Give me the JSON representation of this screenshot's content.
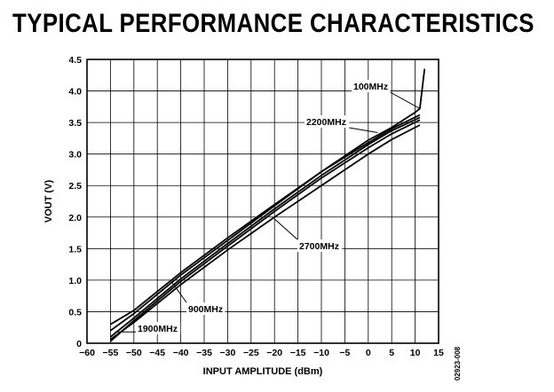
{
  "page": {
    "heading": "TYPICAL PERFORMANCE CHARACTERISTICS",
    "figure_id": "02923-008"
  },
  "chart_data": {
    "type": "line",
    "title": "",
    "xlabel": "INPUT AMPLITUDE (dBm)",
    "ylabel": "VOUT (V)",
    "xlim": [
      -60,
      15
    ],
    "ylim": [
      0,
      4.5
    ],
    "x_ticks": [
      -60,
      -55,
      -50,
      -45,
      -40,
      -35,
      -30,
      -25,
      -20,
      -15,
      -10,
      -5,
      0,
      5,
      10,
      15
    ],
    "x_tick_labels": [
      "−60",
      "−55",
      "−50",
      "−45",
      "−40",
      "−35",
      "−30",
      "−25",
      "−20",
      "−15",
      "−10",
      "−5",
      "0",
      "5",
      "10",
      "15"
    ],
    "y_ticks": [
      0,
      0.5,
      1.0,
      1.5,
      2.0,
      2.5,
      3.0,
      3.5,
      4.0,
      4.5
    ],
    "y_tick_labels": [
      "0",
      "0.5",
      "1.0",
      "1.5",
      "2.0",
      "2.5",
      "3.0",
      "3.5",
      "4.0",
      "4.5"
    ],
    "grid": true,
    "series": [
      {
        "name": "100MHz",
        "points": [
          [
            -55,
            0.2
          ],
          [
            -50,
            0.47
          ],
          [
            -40,
            1.08
          ],
          [
            -30,
            1.63
          ],
          [
            -20,
            2.18
          ],
          [
            -10,
            2.72
          ],
          [
            0,
            3.22
          ],
          [
            5,
            3.42
          ],
          [
            10,
            3.66
          ],
          [
            11,
            3.72
          ],
          [
            12,
            4.35
          ]
        ]
      },
      {
        "name": "2200MHz",
        "points": [
          [
            -55,
            0.3
          ],
          [
            -50,
            0.52
          ],
          [
            -40,
            1.12
          ],
          [
            -30,
            1.67
          ],
          [
            -20,
            2.2
          ],
          [
            -10,
            2.72
          ],
          [
            0,
            3.18
          ],
          [
            5,
            3.4
          ],
          [
            11,
            3.62
          ]
        ]
      },
      {
        "name": "900MHz",
        "points": [
          [
            -55,
            0.1
          ],
          [
            -50,
            0.4
          ],
          [
            -40,
            1.02
          ],
          [
            -30,
            1.58
          ],
          [
            -20,
            2.13
          ],
          [
            -10,
            2.66
          ],
          [
            0,
            3.15
          ],
          [
            5,
            3.37
          ],
          [
            11,
            3.58
          ]
        ]
      },
      {
        "name": "1900MHz",
        "points": [
          [
            -55,
            0.03
          ],
          [
            -50,
            0.36
          ],
          [
            -40,
            0.98
          ],
          [
            -30,
            1.54
          ],
          [
            -20,
            2.09
          ],
          [
            -10,
            2.62
          ],
          [
            0,
            3.1
          ],
          [
            5,
            3.32
          ],
          [
            11,
            3.54
          ]
        ]
      },
      {
        "name": "2700MHz",
        "points": [
          [
            -55,
            0.06
          ],
          [
            -50,
            0.33
          ],
          [
            -40,
            0.93
          ],
          [
            -30,
            1.48
          ],
          [
            -20,
            2.0
          ],
          [
            -10,
            2.5
          ],
          [
            0,
            3.0
          ],
          [
            5,
            3.23
          ],
          [
            11,
            3.46
          ]
        ]
      }
    ],
    "annotations": [
      {
        "text": "100MHz",
        "target": [
          11,
          3.72
        ]
      },
      {
        "text": "2200MHz",
        "target": [
          2,
          3.34
        ]
      },
      {
        "text": "2700MHz",
        "target": [
          -20,
          1.97
        ]
      },
      {
        "text": "900MHz",
        "target": [
          -42,
          0.98
        ]
      },
      {
        "text": "1900MHz",
        "target": [
          -54,
          0.18
        ]
      }
    ]
  }
}
